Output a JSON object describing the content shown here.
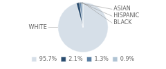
{
  "chart_data": {
    "type": "pie",
    "categories": [
      "WHITE",
      "ASIAN",
      "HISPANIC",
      "BLACK"
    ],
    "values": [
      95.7,
      2.1,
      1.3,
      0.9
    ],
    "value_labels": [
      "95.7%",
      "2.1%",
      "1.3%",
      "0.9%"
    ],
    "colors": [
      "#d6dfe8",
      "#2b4d6f",
      "#5b7fa3",
      "#b0c4d4"
    ],
    "legend": "bottom"
  }
}
